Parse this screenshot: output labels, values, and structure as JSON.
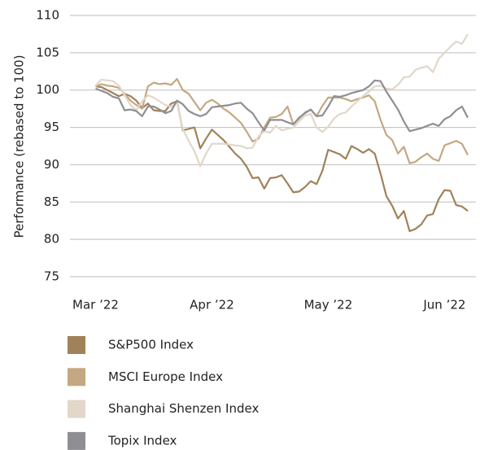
{
  "chart_data": {
    "type": "line",
    "ylabel": "Performance (rebased to 100)",
    "categories": [
      "Mar ’22",
      null,
      null,
      null,
      null,
      null,
      null,
      null,
      null,
      null,
      null,
      null,
      null,
      null,
      null,
      null,
      null,
      null,
      null,
      null,
      "Apr ’22",
      null,
      null,
      null,
      null,
      null,
      null,
      null,
      null,
      null,
      null,
      null,
      null,
      null,
      null,
      null,
      null,
      null,
      null,
      null,
      "May ’22",
      null,
      null,
      null,
      null,
      null,
      null,
      null,
      null,
      null,
      null,
      null,
      null,
      null,
      null,
      null,
      null,
      null,
      null,
      null,
      "Jun ’22",
      null,
      null,
      null,
      null
    ],
    "series": [
      {
        "name": "S&P500 Index",
        "color": "#a0825a",
        "values": [
          100.5,
          100.4,
          100,
          99.6,
          99.2,
          99.5,
          99.2,
          98.6,
          97.6,
          98.2,
          97.3,
          97.2,
          97.2,
          98.2,
          98.5,
          94.6,
          94.8,
          95,
          92.2,
          93.5,
          94.7,
          94,
          93.3,
          92.4,
          91.5,
          90.8,
          89.7,
          88.2,
          88.3,
          86.8,
          88.2,
          88.3,
          88.6,
          87.5,
          86.3,
          86.4,
          87,
          87.8,
          87.4,
          89.2,
          92,
          91.7,
          91.4,
          90.8,
          92.5,
          92.1,
          91.6,
          92.1,
          91.5,
          88.8,
          85.8,
          84.5,
          82.8,
          83.8,
          81.1,
          81.4,
          82,
          83.2,
          83.4,
          85.4,
          86.6,
          86.5,
          84.6,
          84.4,
          83.8
        ]
      },
      {
        "name": "MSCI Europe Index",
        "color": "#c4a882",
        "values": [
          100.5,
          100.8,
          100.6,
          100.5,
          100.3,
          99.5,
          98.6,
          98,
          97.5,
          100.5,
          101,
          100.8,
          100.9,
          100.7,
          101.5,
          100,
          99.5,
          98.4,
          97.3,
          98.3,
          98.7,
          98.2,
          97.5,
          97,
          96.3,
          95.6,
          94.4,
          93.1,
          93.5,
          95,
          96.3,
          96.4,
          96.8,
          97.8,
          95.4,
          96.2,
          97,
          97.4,
          96.5,
          97.9,
          99,
          99,
          99,
          98.8,
          98.5,
          98.8,
          99,
          99.3,
          98.5,
          96,
          94,
          93.3,
          91.5,
          92.4,
          90.2,
          90.4,
          91,
          91.5,
          90.8,
          90.5,
          92.6,
          92.9,
          93.2,
          92.8,
          91.3
        ]
      },
      {
        "name": "Shanghai Shenzen Index",
        "color": "#e2d7c8",
        "values": [
          100.6,
          101.4,
          101.3,
          101.2,
          100.6,
          99.3,
          98,
          97.3,
          98.5,
          99.3,
          99,
          98.5,
          98,
          97.8,
          98.3,
          94.8,
          93.2,
          91.8,
          89.8,
          91.5,
          92.8,
          92.8,
          92.8,
          92.7,
          92.6,
          92.5,
          92.2,
          92.3,
          93.8,
          94.5,
          94.3,
          95.2,
          94.6,
          94.8,
          95,
          95.8,
          96.6,
          96.8,
          95,
          94.4,
          95.1,
          96.2,
          96.8,
          97,
          97.8,
          98.5,
          99.2,
          99.8,
          100.5,
          100.6,
          100.2,
          100.1,
          100.7,
          101.7,
          101.8,
          102.7,
          103,
          103.2,
          102.4,
          104.2,
          105,
          105.8,
          106.5,
          106.2,
          107.5
        ]
      },
      {
        "name": "Topix Index",
        "color": "#8f8f93",
        "values": [
          100.2,
          99.9,
          99.6,
          99.1,
          98.9,
          97.3,
          97.4,
          97.2,
          96.5,
          97.8,
          97.8,
          97.4,
          96.9,
          97.2,
          98.6,
          98.1,
          97.2,
          96.8,
          96.5,
          96.8,
          97.7,
          97.8,
          97.9,
          98,
          98.2,
          98.3,
          97.5,
          96.9,
          95.7,
          94.6,
          96,
          96,
          96,
          95.7,
          95.4,
          96.3,
          96.9,
          97.4,
          96.5,
          96.6,
          97.8,
          99.2,
          99.1,
          99.3,
          99.6,
          99.8,
          100,
          100.5,
          101.3,
          101.2,
          99.8,
          98.6,
          97.4,
          95.8,
          94.5,
          94.7,
          94.9,
          95.2,
          95.5,
          95.2,
          96.1,
          96.5,
          97.3,
          97.8,
          96.3
        ]
      }
    ],
    "ylim": [
      75,
      110
    ],
    "yticks": [
      75,
      80,
      85,
      90,
      95,
      100,
      105,
      110
    ],
    "grid": true,
    "legend": "bottom"
  }
}
